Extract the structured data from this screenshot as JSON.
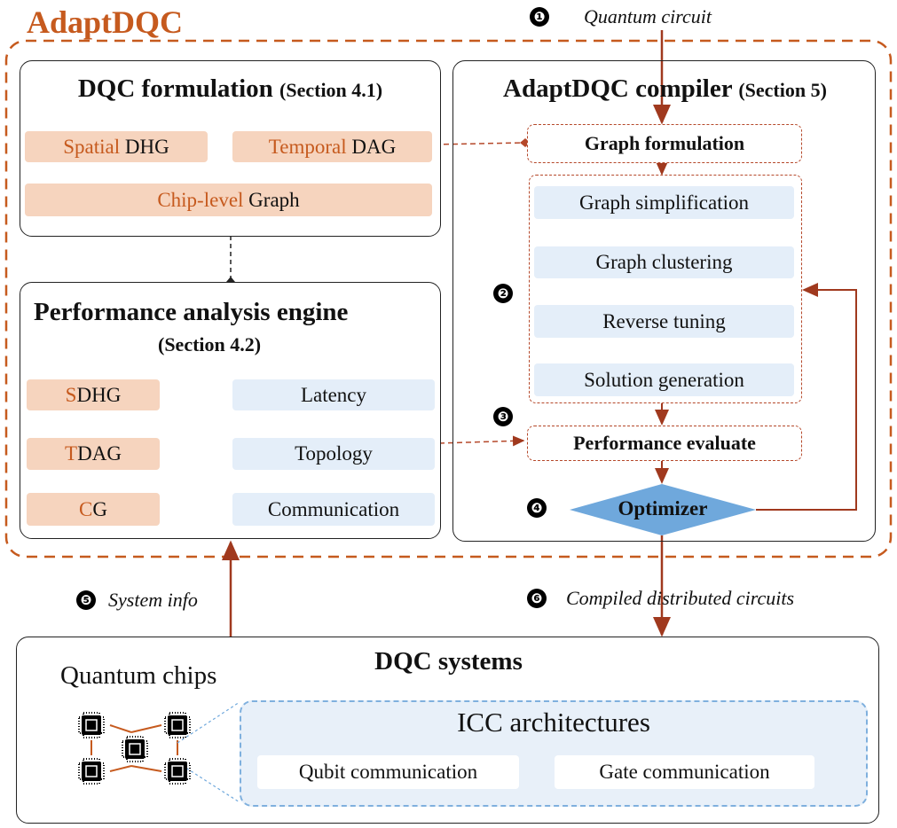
{
  "title": "AdaptDQC",
  "formulation": {
    "title": "DQC formulation",
    "section": "(Section 4.1)",
    "spatial": {
      "accent": "Spatial",
      "rest": " DHG"
    },
    "temporal": {
      "accent": "Temporal",
      "rest": " DAG"
    },
    "chip": {
      "accent": "Chip-level",
      "rest": " Graph"
    }
  },
  "engine": {
    "title": "Performance analysis engine",
    "section": "(Section 4.2)",
    "rows": [
      {
        "accent": "S",
        "rest": "DHG",
        "target": "Latency"
      },
      {
        "accent": "T",
        "rest": "DAG",
        "target": "Topology"
      },
      {
        "accent": "C",
        "rest": "G",
        "target": "Communication"
      }
    ]
  },
  "compiler": {
    "title": "AdaptDQC compiler",
    "section": "(Section 5)",
    "graph_formulation": "Graph formulation",
    "steps": [
      "Graph simplification",
      "Graph clustering",
      "Reverse tuning",
      "Solution generation"
    ],
    "evaluate": "Performance evaluate",
    "optimizer": "Optimizer"
  },
  "labels": {
    "n1": "❶",
    "quantum_circuit": "Quantum circuit",
    "n2": "❷",
    "n3": "❸",
    "n4": "❹",
    "n5": "❺",
    "system_info": "System info",
    "n6": "❻",
    "compiled": "Compiled distributed circuits"
  },
  "systems": {
    "title": "DQC systems",
    "chips": "Quantum chips",
    "icc": "ICC architectures",
    "qubit": "Qubit communication",
    "gate": "Gate communication"
  },
  "colors": {
    "accent": "#c65a1e",
    "arrow": "#a0391e",
    "peach": "#f6d4be",
    "blue": "#e4eef9",
    "optimizer": "#6fa8dc"
  }
}
